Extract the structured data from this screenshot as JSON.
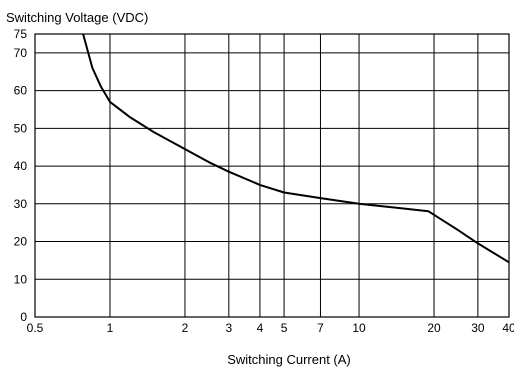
{
  "chart_data": {
    "type": "line",
    "title": "",
    "ylabel": "Switching Voltage (VDC)",
    "xlabel": "Switching Current (A)",
    "x_scale": "log",
    "xlim": [
      0.5,
      40
    ],
    "ylim": [
      0,
      75
    ],
    "grid": true,
    "x_ticks": [
      0.5,
      1,
      2,
      3,
      4,
      5,
      7,
      10,
      20,
      30,
      40
    ],
    "x_tick_labels": [
      "0.5",
      "1",
      "2",
      "3",
      "4",
      "5",
      "7",
      "10",
      "20",
      "30",
      "40"
    ],
    "y_ticks": [
      0,
      10,
      20,
      30,
      40,
      50,
      60,
      70,
      75
    ],
    "y_tick_labels": [
      "0",
      "10",
      "20",
      "30",
      "40",
      "50",
      "60",
      "70",
      "75"
    ],
    "series": [
      {
        "name": "",
        "x": [
          0.78,
          0.85,
          0.92,
          1.0,
          1.2,
          1.5,
          2.0,
          2.5,
          3.0,
          4.0,
          5.0,
          7.0,
          10.0,
          14.0,
          19.0,
          25.0,
          30.0,
          40.0
        ],
        "y": [
          75,
          66,
          61,
          57,
          53,
          49,
          44.5,
          41,
          38.5,
          35,
          33,
          31.5,
          30,
          29,
          28,
          23,
          19.5,
          14.5
        ]
      }
    ]
  }
}
